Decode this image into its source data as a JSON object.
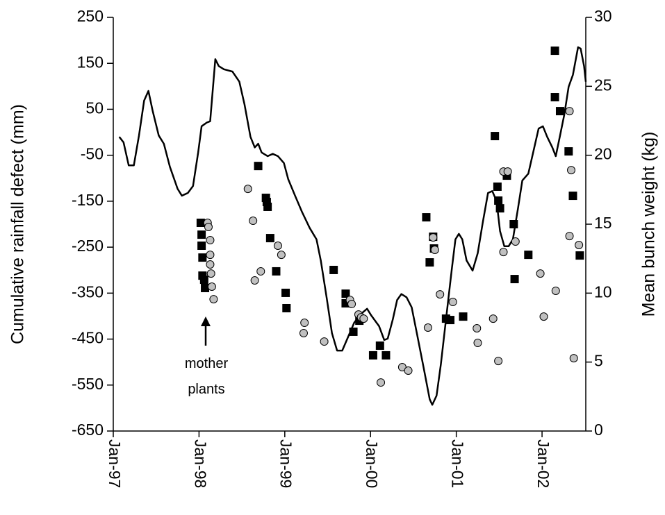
{
  "chart_data": {
    "type": "line",
    "y_label": "Cumulative rainfall defect (mm)",
    "y2_label": "Mean bunch weight (kg)",
    "annotation": "mother plants",
    "xlim": [
      1997,
      2002.51
    ],
    "xticks": [
      {
        "value": 1997,
        "label": "Jan-97"
      },
      {
        "value": 1998,
        "label": "Jan-98"
      },
      {
        "value": 1999,
        "label": "Jan-99"
      },
      {
        "value": 2000,
        "label": "Jan-00"
      },
      {
        "value": 2001,
        "label": "Jan-01"
      },
      {
        "value": 2002,
        "label": "Jan-02"
      }
    ],
    "ylim": [
      -650,
      250
    ],
    "yticks": [
      -650,
      -550,
      -450,
      -350,
      -250,
      -150,
      -50,
      50,
      150,
      250
    ],
    "y2lim": [
      0,
      30
    ],
    "y2ticks": [
      0,
      5,
      10,
      15,
      20,
      25,
      30
    ],
    "series": [
      {
        "type": "line",
        "color": "#000000",
        "axis": "y",
        "x": [
          1997.07,
          1997.12,
          1997.18,
          1997.24,
          1997.3,
          1997.36,
          1997.41,
          1997.46,
          1997.53,
          1997.59,
          1997.66,
          1997.75,
          1997.8,
          1997.87,
          1997.93,
          1997.99,
          1998.03,
          1998.09,
          1998.13,
          1998.17,
          1998.19,
          1998.23,
          1998.29,
          1998.39,
          1998.47,
          1998.53,
          1998.6,
          1998.65,
          1998.69,
          1998.73,
          1998.8,
          1998.86,
          1998.92,
          1998.99,
          1999.04,
          1999.12,
          1999.2,
          1999.29,
          1999.37,
          1999.42,
          1999.49,
          1999.55,
          1999.61,
          1999.67,
          1999.73,
          1999.81,
          1999.89,
          1999.96,
          2000.01,
          2000.1,
          2000.16,
          2000.2,
          2000.26,
          2000.31,
          2000.36,
          2000.42,
          2000.48,
          2000.54,
          2000.62,
          2000.69,
          2000.72,
          2000.77,
          2000.82,
          2000.88,
          2000.95,
          2000.99,
          2001.03,
          2001.07,
          2001.12,
          2001.19,
          2001.25,
          2001.31,
          2001.37,
          2001.42,
          2001.47,
          2001.51,
          2001.56,
          2001.61,
          2001.66,
          2001.72,
          2001.77,
          2001.84,
          2001.9,
          2001.96,
          2002.01,
          2002.06,
          2002.12,
          2002.16,
          2002.21,
          2002.26,
          2002.31,
          2002.36,
          2002.42,
          2002.45,
          2002.49,
          2002.51
        ],
        "values": [
          -10,
          -22,
          -72,
          -72,
          -7,
          69,
          90,
          46,
          -7,
          -25,
          -75,
          -123,
          -138,
          -132,
          -117,
          -44,
          13,
          21,
          24,
          114,
          159,
          144,
          137,
          132,
          110,
          61,
          -10,
          -33,
          -25,
          -44,
          -52,
          -47,
          -52,
          -67,
          -102,
          -138,
          -173,
          -208,
          -233,
          -279,
          -362,
          -437,
          -475,
          -475,
          -449,
          -414,
          -395,
          -384,
          -399,
          -422,
          -452,
          -449,
          -407,
          -365,
          -352,
          -359,
          -381,
          -437,
          -513,
          -581,
          -593,
          -573,
          -505,
          -407,
          -294,
          -233,
          -221,
          -233,
          -279,
          -301,
          -263,
          -195,
          -132,
          -128,
          -150,
          -215,
          -248,
          -248,
          -233,
          -165,
          -105,
          -90,
          -41,
          8,
          13,
          -10,
          -33,
          -52,
          -7,
          39,
          99,
          125,
          185,
          182,
          144,
          110
        ]
      },
      {
        "type": "scatter",
        "marker": "square",
        "color": "#000000",
        "axis": "y2",
        "x": [
          1998.02,
          1998.03,
          1998.03,
          1998.04,
          1998.04,
          1998.06,
          1998.07,
          1998.69,
          1998.78,
          1998.79,
          1998.8,
          1998.83,
          1998.9,
          1999.01,
          1999.02,
          1999.57,
          1999.71,
          1999.71,
          1999.8,
          1999.87,
          2000.03,
          2000.11,
          2000.18,
          2000.65,
          2000.69,
          2000.73,
          2000.74,
          2000.88,
          2000.93,
          2001.08,
          2001.45,
          2001.48,
          2001.49,
          2001.51,
          2001.59,
          2001.67,
          2001.68,
          2001.84,
          2002.15,
          2002.15,
          2002.21,
          2002.31,
          2002.36,
          2002.44
        ],
        "values": [
          15.1,
          14.24,
          13.44,
          12.58,
          11.27,
          10.97,
          10.37,
          19.22,
          16.91,
          16.61,
          16.26,
          13.99,
          11.58,
          10.02,
          8.91,
          11.68,
          9.96,
          9.26,
          7.2,
          8.0,
          5.49,
          6.19,
          5.49,
          15.5,
          12.23,
          14.09,
          13.24,
          8.15,
          8.05,
          8.3,
          21.39,
          17.72,
          16.71,
          16.15,
          18.52,
          15.0,
          11.02,
          12.78,
          27.58,
          24.21,
          23.2,
          20.28,
          17.06,
          12.73
        ]
      },
      {
        "type": "scatter",
        "marker": "circle",
        "color": "#c0c0c0",
        "axis": "y2",
        "x": [
          1998.1,
          1998.11,
          1998.13,
          1998.13,
          1998.13,
          1998.14,
          1998.15,
          1998.17,
          1998.57,
          1998.63,
          1998.65,
          1998.72,
          1998.92,
          1998.96,
          1999.23,
          1999.22,
          1999.46,
          1999.76,
          1999.78,
          1999.86,
          1999.89,
          1999.92,
          2000.12,
          2000.37,
          2000.44,
          2000.67,
          2000.73,
          2000.75,
          2000.81,
          2000.96,
          2001.24,
          2001.25,
          2001.43,
          2001.49,
          2001.55,
          2001.55,
          2001.6,
          2001.69,
          2001.98,
          2002.02,
          2002.16,
          2002.32,
          2002.34,
          2002.32,
          2002.37,
          2002.43
        ],
        "values": [
          15.1,
          14.8,
          13.84,
          12.78,
          12.08,
          11.42,
          10.47,
          9.56,
          17.56,
          15.25,
          10.92,
          11.58,
          13.44,
          12.78,
          7.85,
          7.1,
          6.49,
          9.51,
          9.21,
          8.45,
          8.25,
          8.15,
          3.52,
          4.63,
          4.38,
          7.5,
          14.04,
          13.14,
          9.91,
          9.36,
          7.45,
          6.39,
          8.15,
          5.08,
          18.82,
          12.98,
          18.82,
          13.74,
          11.42,
          8.3,
          10.17,
          23.2,
          18.92,
          14.14,
          5.28,
          13.49
        ]
      }
    ]
  }
}
